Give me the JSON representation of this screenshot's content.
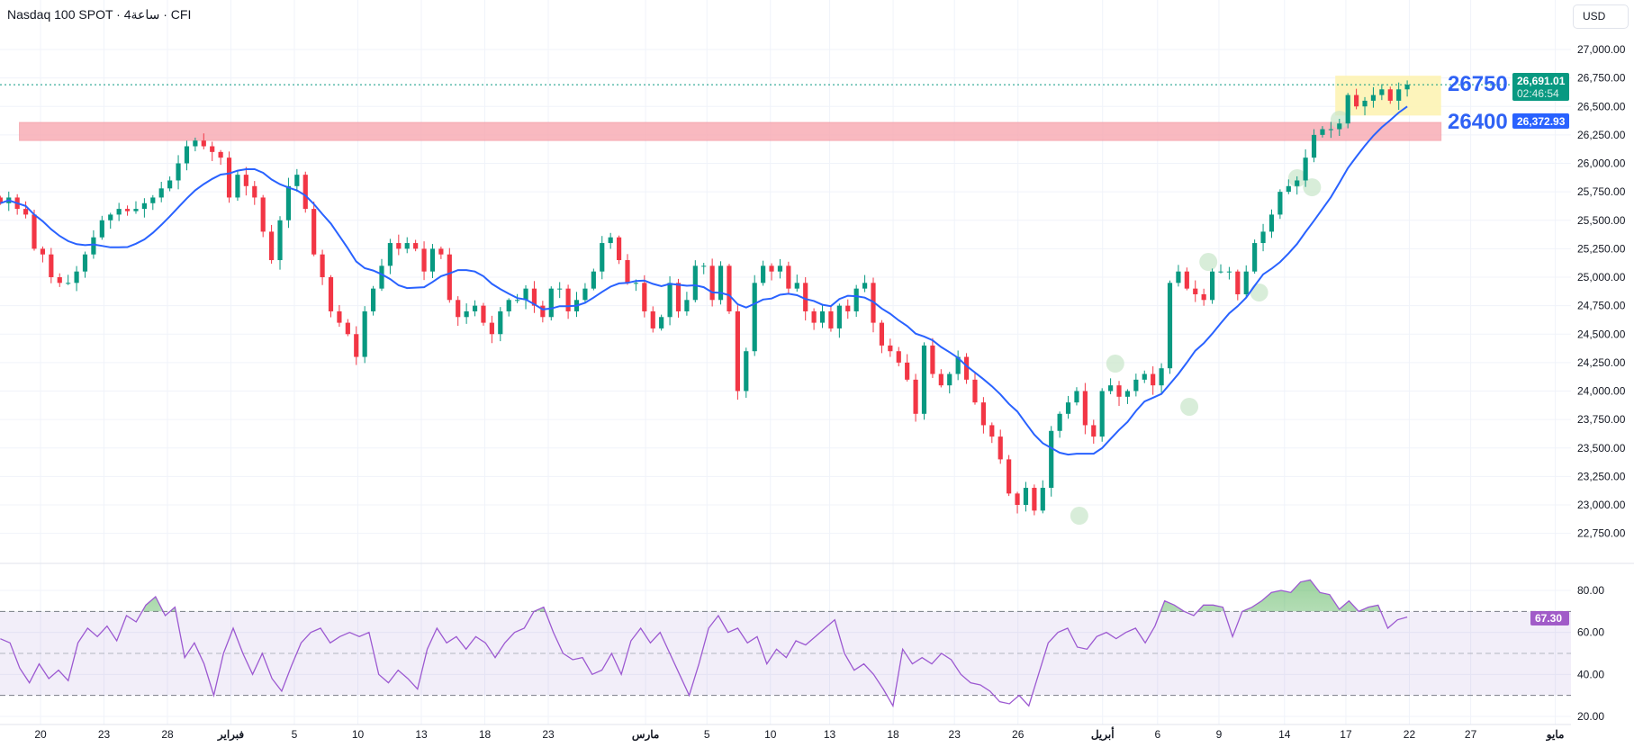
{
  "header": {
    "title": "Nasdaq 100 SPOT · 4ساعة · CFI",
    "currency": "USD"
  },
  "colors": {
    "up": "#089981",
    "down": "#f23645",
    "ma": "#2962ff",
    "rsi": "#9c59d1",
    "rsi_label": "#a15bc8",
    "zone_red": "#f7a8b0",
    "zone_yellow": "#fdf3b4",
    "pivot": "#c8e6c9"
  },
  "annotations": {
    "resistance_label": "26750",
    "support_label": "26400"
  },
  "price_labels": {
    "last_price": "26,691.01",
    "countdown": "02:46:54",
    "ma_value": "26,372.93",
    "rsi_value": "67.30"
  },
  "chart_data": {
    "type": "candlestick",
    "title": "Nasdaq 100 SPOT · 4ساعة · CFI",
    "time_unit": "trading days since Jan 20",
    "time_range": [
      -1.9,
      64.6
    ],
    "ylim": [
      22600,
      27250
    ],
    "grid": true,
    "closes": [
      25650,
      25700,
      25600,
      25550,
      25250,
      25200,
      25000,
      24950,
      24950,
      25050,
      25200,
      25350,
      25500,
      25550,
      25600,
      25580,
      25600,
      25650,
      25700,
      25780,
      25850,
      26000,
      26150,
      26200,
      26150,
      26100,
      26050,
      25700,
      25900,
      25800,
      25700,
      25400,
      25150,
      25500,
      25800,
      25900,
      25600,
      25200,
      25000,
      24700,
      24600,
      24500,
      24300,
      24700,
      24900,
      25100,
      25300,
      25250,
      25300,
      25250,
      25050,
      25250,
      25200,
      24800,
      24650,
      24700,
      24750,
      24600,
      24500,
      24700,
      24800,
      24800,
      24900,
      24750,
      24650,
      24900,
      24900,
      24700,
      24800,
      24900,
      25050,
      25300,
      25350,
      25150,
      24950,
      24950,
      24700,
      24550,
      24650,
      24950,
      24700,
      24800,
      25100,
      25100,
      24800,
      25100,
      24700,
      24000,
      24350,
      24950,
      25100,
      25050,
      25100,
      24900,
      24950,
      24700,
      24600,
      24700,
      24550,
      24750,
      24700,
      24900,
      24950,
      24600,
      24400,
      24350,
      24250,
      24100,
      23800,
      24400,
      24150,
      24050,
      24150,
      24300,
      24100,
      23900,
      23700,
      23600,
      23400,
      23100,
      23000,
      23150,
      22950,
      23150,
      23650,
      23800,
      23900,
      24000,
      23700,
      23600,
      24000,
      24050,
      23950,
      24000,
      24100,
      24150,
      24050,
      24200,
      24950,
      25050,
      24900,
      24850,
      24800,
      25050,
      25050,
      25050,
      24850,
      25050,
      25300,
      25400,
      25550,
      25750,
      25800,
      25850,
      26050,
      26250,
      26300,
      26300,
      26350,
      26600,
      26500,
      26550,
      26600,
      26650,
      26550,
      26650,
      26691
    ],
    "ma_period": 12,
    "rsi": [
      57,
      55,
      43,
      36,
      45,
      38,
      42,
      37,
      55,
      62,
      58,
      63,
      56,
      68,
      65,
      73,
      77,
      68,
      72,
      48,
      55,
      45,
      30,
      50,
      62,
      50,
      40,
      50,
      38,
      32,
      44,
      55,
      60,
      62,
      55,
      58,
      60,
      58,
      60,
      40,
      36,
      42,
      38,
      33,
      52,
      62,
      55,
      58,
      52,
      58,
      55,
      48,
      55,
      60,
      62,
      70,
      72,
      60,
      50,
      47,
      48,
      40,
      42,
      50,
      40,
      56,
      62,
      55,
      60,
      50,
      40,
      30,
      45,
      62,
      68,
      60,
      62,
      55,
      58,
      45,
      52,
      48,
      56,
      54,
      58,
      62,
      66,
      50,
      42,
      45,
      40,
      33,
      25,
      52,
      45,
      48,
      45,
      50,
      47,
      40,
      36,
      35,
      32,
      27,
      26,
      30,
      25,
      40,
      55,
      60,
      62,
      53,
      52,
      58,
      60,
      57,
      60,
      62,
      55,
      63,
      75,
      73,
      70,
      68,
      73,
      73,
      72,
      58,
      70,
      72,
      75,
      79,
      80,
      79,
      84,
      85,
      79,
      78,
      71,
      75,
      70,
      72,
      73,
      62,
      66,
      67.3
    ],
    "rsi_levels": {
      "upper": 70,
      "middle": 50,
      "lower": 30
    },
    "price_ticks": [
      "27,000.00",
      "26,750.00",
      "26,500.00",
      "26,250.00",
      "26,000.00",
      "25,750.00",
      "25,500.00",
      "25,250.00",
      "25,000.00",
      "24,750.00",
      "24,500.00",
      "24,250.00",
      "24,000.00",
      "23,750.00",
      "23,500.00",
      "23,250.00",
      "23,000.00",
      "22,750.00"
    ],
    "price_tick_values": [
      27000,
      26750,
      26500,
      26250,
      26000,
      25750,
      25500,
      25250,
      25000,
      24750,
      24500,
      24250,
      24000,
      23750,
      23500,
      23250,
      23000,
      22750
    ],
    "rsi_ticks": [
      {
        "label": "80.00",
        "v": 80
      },
      {
        "label": "60.00",
        "v": 60
      },
      {
        "label": "40.00",
        "v": 40
      },
      {
        "label": "20.00",
        "v": 20
      }
    ],
    "x_ticks": [
      {
        "label": "20",
        "d": 0
      },
      {
        "label": "23",
        "d": 3
      },
      {
        "label": "28",
        "d": 6
      },
      {
        "label": "فبراير",
        "d": 9
      },
      {
        "label": "5",
        "d": 12
      },
      {
        "label": "10",
        "d": 15
      },
      {
        "label": "13",
        "d": 18
      },
      {
        "label": "18",
        "d": 21
      },
      {
        "label": "23",
        "d": 24
      },
      {
        "label": "مارس",
        "d": 28.6
      },
      {
        "label": "5",
        "d": 31.5
      },
      {
        "label": "10",
        "d": 34.5
      },
      {
        "label": "13",
        "d": 37.3
      },
      {
        "label": "18",
        "d": 40.3
      },
      {
        "label": "23",
        "d": 43.2
      },
      {
        "label": "26",
        "d": 46.2
      },
      {
        "label": "أبريل",
        "d": 50.2
      },
      {
        "label": "6",
        "d": 52.8
      },
      {
        "label": "9",
        "d": 55.7
      },
      {
        "label": "14",
        "d": 58.8
      },
      {
        "label": "17",
        "d": 61.7
      },
      {
        "label": "22",
        "d": 64.7
      },
      {
        "label": "27",
        "d": 67.6
      },
      {
        "label": "مايو",
        "d": 71.6
      }
    ],
    "zones": [
      {
        "name": "resistance-zone",
        "from_d": -1.0,
        "to_d": 66.2,
        "low": 26200,
        "high": 26360
      },
      {
        "name": "consolidation-box",
        "from_d": 61.2,
        "to_d": 66.2,
        "low": 26420,
        "high": 26770
      }
    ],
    "pivots": [
      {
        "d": 49.1,
        "p": 22905
      },
      {
        "d": 50.8,
        "p": 24241
      },
      {
        "d": 54.3,
        "p": 23862
      },
      {
        "d": 55.2,
        "p": 25134
      },
      {
        "d": 57.6,
        "p": 24866
      },
      {
        "d": 59.4,
        "p": 25870
      },
      {
        "d": 60.1,
        "p": 25790
      },
      {
        "d": 61.4,
        "p": 26383
      }
    ],
    "last_price": 26691.01,
    "ma_last": 26372.93
  }
}
